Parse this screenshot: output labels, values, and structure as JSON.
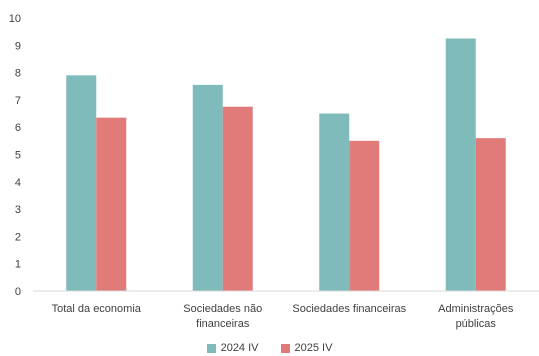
{
  "chart_data": {
    "type": "bar",
    "categories": [
      [
        "Total da economia"
      ],
      [
        "Sociedades não",
        "financeiras"
      ],
      [
        "Sociedades financeiras"
      ],
      [
        "Administrações",
        "públicas"
      ]
    ],
    "series": [
      {
        "name": "2024 IV",
        "color": "#7fbbbb",
        "values": [
          7.9,
          7.55,
          6.5,
          9.25
        ]
      },
      {
        "name": "2025 IV",
        "color": "#e07b7a",
        "values": [
          6.35,
          6.75,
          5.5,
          5.6
        ]
      }
    ],
    "ylim": [
      0,
      10
    ],
    "yticks": [
      0,
      1,
      2,
      3,
      4,
      5,
      6,
      7,
      8,
      9,
      10
    ],
    "grid": false,
    "legend_position": "bottom-center"
  }
}
